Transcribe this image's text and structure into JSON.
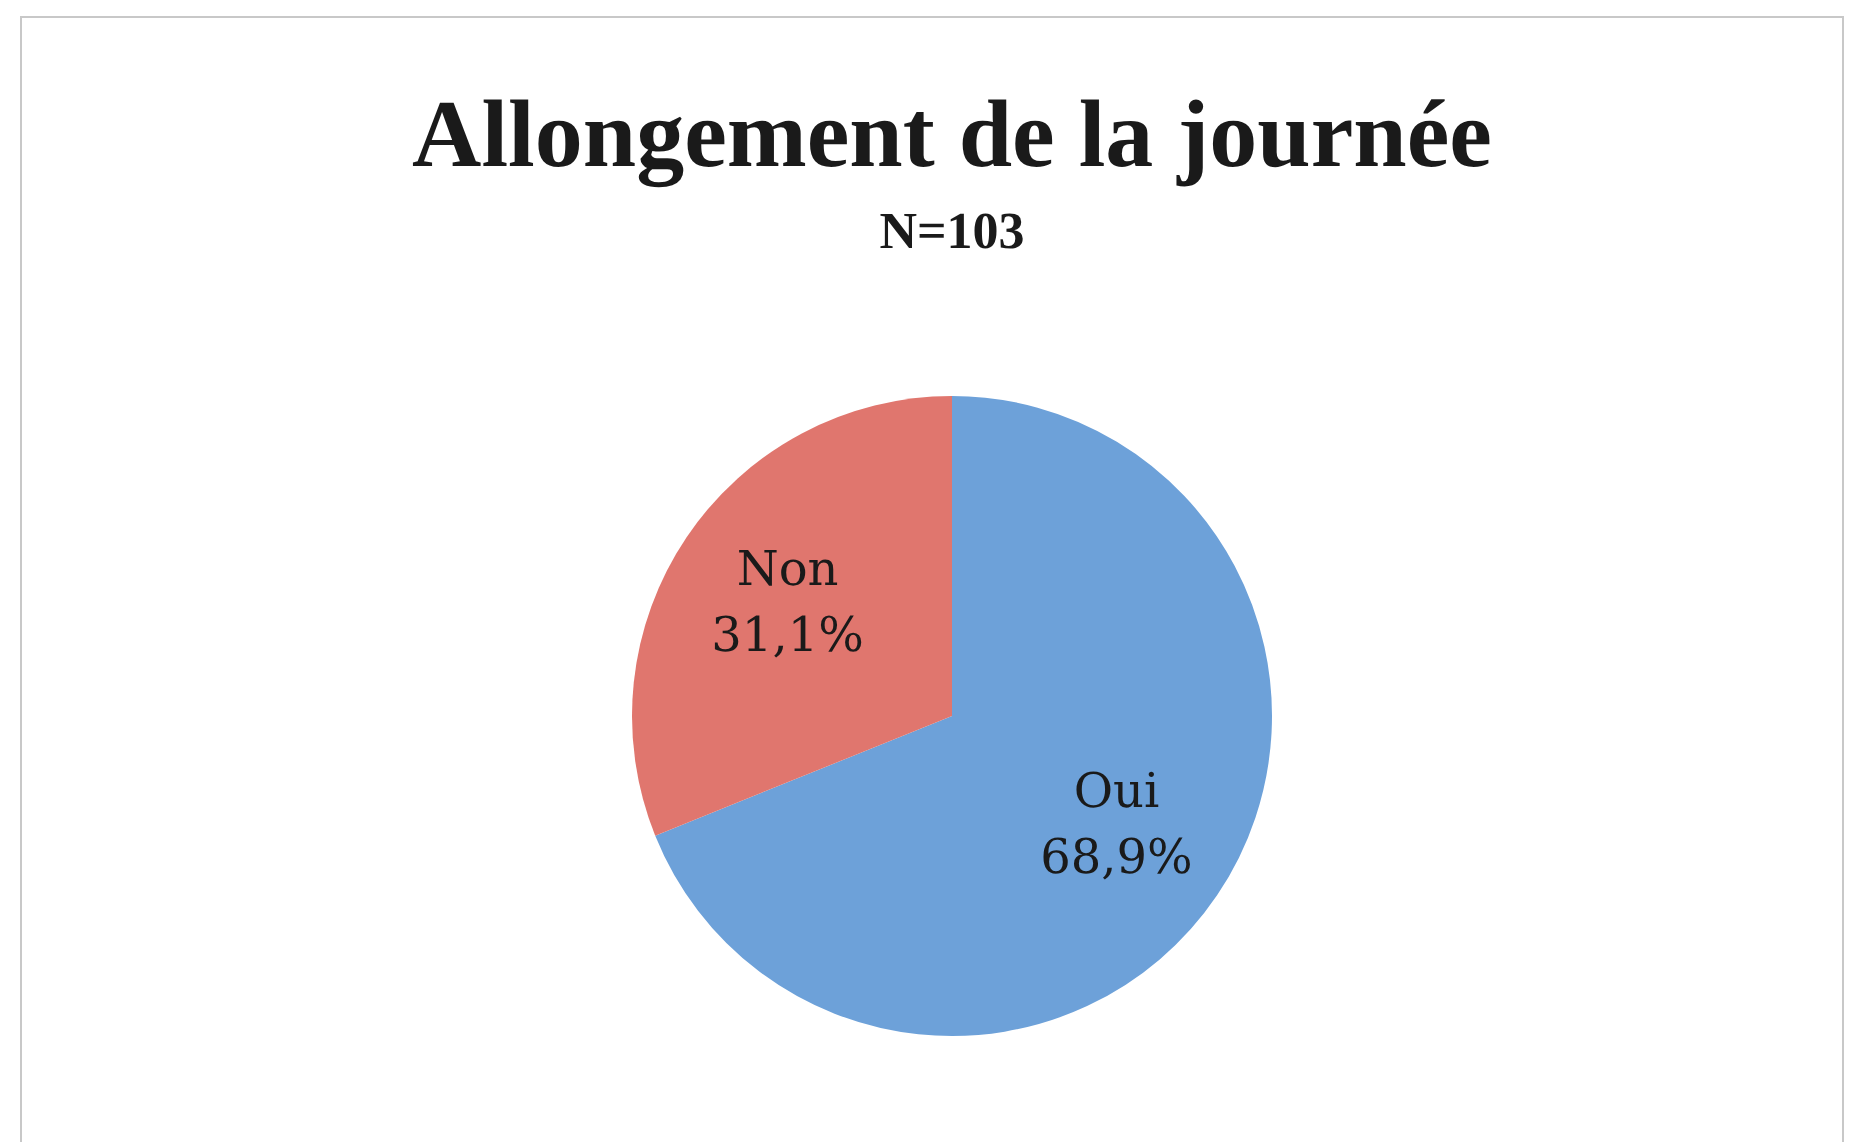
{
  "chart_data": {
    "type": "pie",
    "title": "Allongement de la journée",
    "subtitle": "N=103",
    "categories": [
      "Oui",
      "Non"
    ],
    "values": [
      68.9,
      31.1
    ],
    "colors": [
      "#6da1d9",
      "#e0766e"
    ],
    "value_labels": [
      "68,9%",
      "31,1%"
    ],
    "legend": false
  }
}
